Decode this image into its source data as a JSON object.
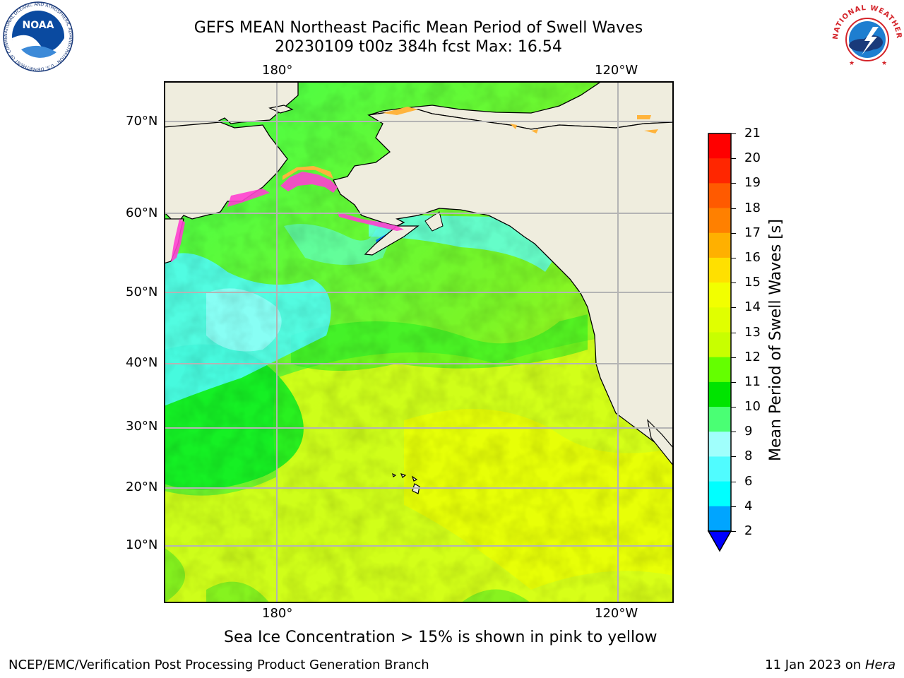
{
  "title": {
    "line1": "GEFS MEAN Northeast Pacific Mean Period of Swell Waves",
    "line2": "20230109 t00z 384h fcst   Max: 16.54"
  },
  "map": {
    "top_lon_labels": [
      "180°",
      "120°W"
    ],
    "bottom_lon_labels": [
      "180°",
      "120°W"
    ],
    "lat_labels": [
      "70°N",
      "60°N",
      "50°N",
      "40°N",
      "30°N",
      "20°N",
      "10°N"
    ],
    "colors": {
      "land": "#efedde",
      "coast": "#000000",
      "grid": "#b4b4b4",
      "ice_pink": "#ff3fd0",
      "ice_orange": "#ffb43c"
    }
  },
  "colorbar": {
    "label": "Mean Period of Swell Waves [s]",
    "ticks": [
      "21",
      "20",
      "19",
      "18",
      "17",
      "16",
      "15",
      "14",
      "13",
      "12",
      "11",
      "10",
      "9",
      "8",
      "6",
      "4",
      "2"
    ],
    "colors": [
      "#ff0000",
      "#ff2600",
      "#ff5a00",
      "#ff8000",
      "#ffb000",
      "#ffe000",
      "#f2ff00",
      "#e0ff00",
      "#c8ff00",
      "#64ff00",
      "#00e400",
      "#4aff74",
      "#a0fffc",
      "#50fcff",
      "#00ffff",
      "#00a5ff",
      "#0050ff"
    ],
    "extend_color": "#0000ff"
  },
  "note": "Sea Ice Concentration > 15% is shown in pink to yellow",
  "footer": {
    "left": "NCEP/EMC/Verification Post Processing Product Generation Branch",
    "right_prefix": "11 Jan 2023 on ",
    "right_host": "Hera"
  },
  "logos": {
    "noaa": {
      "text": "NOAA",
      "ring_text": "NATIONAL OCEANIC AND ATMOSPHERIC ADMINISTRATION · U.S. DEPARTMENT OF COMMERCE"
    },
    "nws": {
      "ring_text": "NATIONAL WEATHER SERVICE"
    }
  }
}
